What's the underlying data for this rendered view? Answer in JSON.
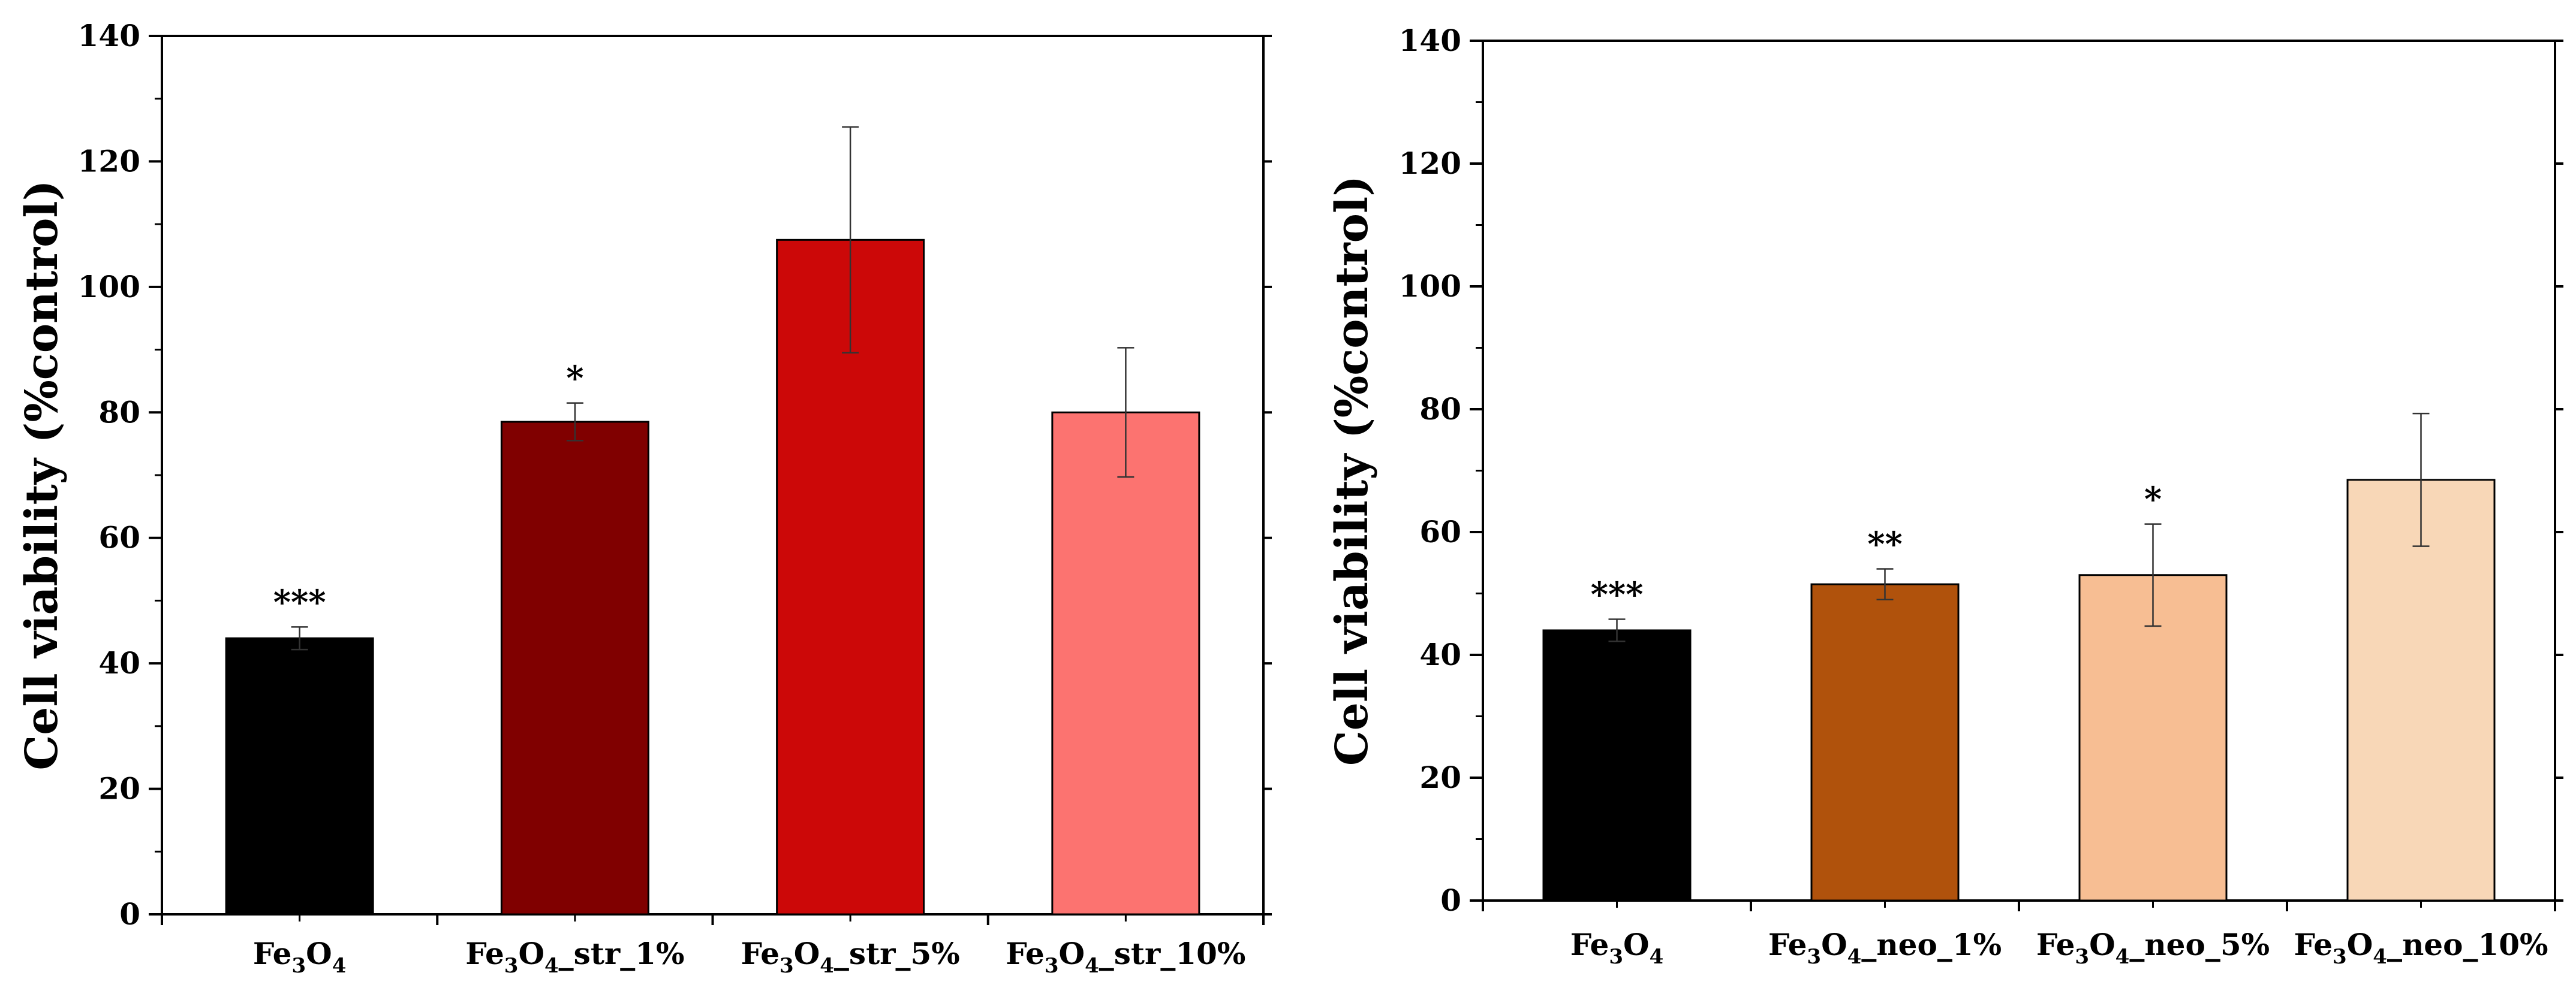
{
  "chart_data": [
    {
      "type": "bar",
      "panel": "left",
      "ylabel": "Cell viability (%control)",
      "xlabel": "",
      "ylim": [
        0,
        140
      ],
      "yticks": [
        0,
        20,
        40,
        60,
        80,
        100,
        120,
        140
      ],
      "yticks_text": [
        "0",
        "20",
        "40",
        "60",
        "80",
        "100",
        "120",
        "140"
      ],
      "categories": [
        {
          "base": "Fe",
          "sub1": "3",
          "mid": "O",
          "sub2": "4",
          "suffix": ""
        },
        {
          "base": "Fe",
          "sub1": "3",
          "mid": "O",
          "sub2": "4",
          "suffix": "_str_1%"
        },
        {
          "base": "Fe",
          "sub1": "3",
          "mid": "O",
          "sub2": "4",
          "suffix": "_str_5%"
        },
        {
          "base": "Fe",
          "sub1": "3",
          "mid": "O",
          "sub2": "4",
          "suffix": "_str_10%"
        }
      ],
      "values": [
        44,
        78.5,
        107.5,
        80
      ],
      "errors": [
        1.8,
        3,
        18,
        10.3
      ],
      "significance": [
        "***",
        "*",
        "",
        ""
      ],
      "colors": [
        "#000000",
        "#800000",
        "#CC0808",
        "#FC7370"
      ]
    },
    {
      "type": "bar",
      "panel": "right",
      "ylabel": "Cell viability (%control)",
      "xlabel": "",
      "ylim": [
        0,
        140
      ],
      "yticks": [
        0,
        20,
        40,
        60,
        80,
        100,
        120,
        140
      ],
      "yticks_text": [
        "0",
        "20",
        "40",
        "60",
        "80",
        "100",
        "120",
        "140"
      ],
      "categories": [
        {
          "base": "Fe",
          "sub1": "3",
          "mid": "O",
          "sub2": "4",
          "suffix": ""
        },
        {
          "base": "Fe",
          "sub1": "3",
          "mid": "O",
          "sub2": "4",
          "suffix": "_neo_1%"
        },
        {
          "base": "Fe",
          "sub1": "3",
          "mid": "O",
          "sub2": "4",
          "suffix": "_neo_5%"
        },
        {
          "base": "Fe",
          "sub1": "3",
          "mid": "O",
          "sub2": "4",
          "suffix": "_neo_10%"
        }
      ],
      "values": [
        44,
        51.5,
        53,
        68.5
      ],
      "errors": [
        1.8,
        2.5,
        8.3,
        10.8
      ],
      "significance": [
        "***",
        "**",
        "*",
        ""
      ],
      "colors": [
        "#000000",
        "#B0520C",
        "#F7BE93",
        "#F8D7B7"
      ]
    }
  ]
}
